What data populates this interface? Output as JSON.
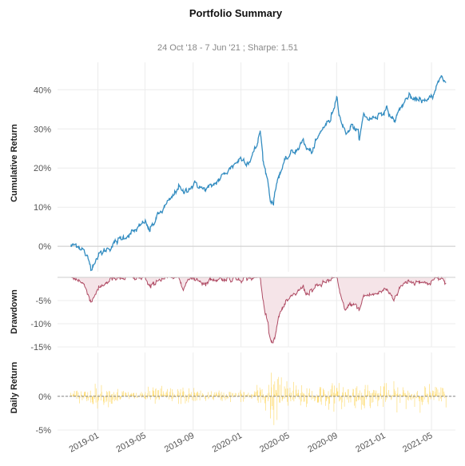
{
  "colors": {
    "cumulative": "#348dc1",
    "drawdown_line": "#af4b64",
    "drawdown_fill": "#f5e4e8",
    "daily": "#fedd78",
    "zero_line": "#cccccc",
    "daily_zero": "#777777"
  },
  "chart_data": [
    {
      "type": "line",
      "title": "Portfolio Summary",
      "subtitle": "24 Oct '18 -  7 Jun '21 ;  Sharpe: 1.51",
      "ylabel": "Cumulative Return",
      "ylim": [
        -0.065,
        0.47
      ],
      "yticks": [
        0,
        0.1,
        0.2,
        0.3,
        0.4
      ],
      "ytick_labels": [
        "0%",
        "10%",
        "20%",
        "30%",
        "40%"
      ],
      "grid": true,
      "x_key_dates": [
        "2018-10-24",
        "2018-11-10",
        "2018-11-25",
        "2018-12-05",
        "2018-12-15",
        "2018-12-24",
        "2019-01-05",
        "2019-01-20",
        "2019-02-10",
        "2019-03-01",
        "2019-03-20",
        "2019-04-15",
        "2019-04-30",
        "2019-05-13",
        "2019-06-01",
        "2019-06-20",
        "2019-07-10",
        "2019-07-26",
        "2019-08-05",
        "2019-08-20",
        "2019-09-10",
        "2019-09-25",
        "2019-10-15",
        "2019-11-01",
        "2019-11-20",
        "2019-12-10",
        "2019-12-31",
        "2020-01-20",
        "2020-02-10",
        "2020-02-19",
        "2020-02-28",
        "2020-03-09",
        "2020-03-16",
        "2020-03-23",
        "2020-04-05",
        "2020-04-20",
        "2020-05-05",
        "2020-05-20",
        "2020-06-08",
        "2020-06-15",
        "2020-06-29",
        "2020-07-15",
        "2020-08-01",
        "2020-08-15",
        "2020-09-02",
        "2020-09-10",
        "2020-09-23",
        "2020-10-12",
        "2020-10-30",
        "2020-11-09",
        "2020-11-25",
        "2020-12-15",
        "2021-01-05",
        "2021-01-26",
        "2021-02-12",
        "2021-03-04",
        "2021-03-18",
        "2021-04-01",
        "2021-04-16",
        "2021-05-07",
        "2021-05-12",
        "2021-05-26",
        "2021-06-07"
      ],
      "x_key_values": [
        0.0,
        0.005,
        -0.01,
        -0.03,
        -0.055,
        -0.035,
        -0.02,
        -0.01,
        0.005,
        0.02,
        0.03,
        0.045,
        0.065,
        0.04,
        0.075,
        0.1,
        0.125,
        0.155,
        0.135,
        0.15,
        0.16,
        0.145,
        0.15,
        0.165,
        0.185,
        0.205,
        0.225,
        0.215,
        0.255,
        0.295,
        0.21,
        0.17,
        0.12,
        0.11,
        0.18,
        0.21,
        0.235,
        0.245,
        0.27,
        0.25,
        0.24,
        0.275,
        0.31,
        0.32,
        0.385,
        0.33,
        0.29,
        0.31,
        0.28,
        0.335,
        0.325,
        0.335,
        0.35,
        0.32,
        0.355,
        0.385,
        0.37,
        0.38,
        0.365,
        0.39,
        0.41,
        0.43,
        0.42
      ]
    },
    {
      "type": "area",
      "ylabel": "Drawdown",
      "ylim": [
        -0.15,
        0.0
      ],
      "yticks": [
        -0.05,
        -0.1,
        -0.15
      ],
      "ytick_labels": [
        "-5%",
        "-10%",
        "-15%"
      ],
      "grid": true,
      "x_key_dates": [
        "2018-10-24",
        "2018-11-10",
        "2018-11-25",
        "2018-12-05",
        "2018-12-15",
        "2018-12-24",
        "2019-01-10",
        "2019-02-01",
        "2019-03-01",
        "2019-04-01",
        "2019-04-30",
        "2019-05-13",
        "2019-06-01",
        "2019-06-20",
        "2019-07-26",
        "2019-08-05",
        "2019-08-20",
        "2019-09-10",
        "2019-10-01",
        "2019-10-20",
        "2020-01-01",
        "2020-02-19",
        "2020-02-28",
        "2020-03-09",
        "2020-03-16",
        "2020-03-23",
        "2020-04-10",
        "2020-05-01",
        "2020-06-08",
        "2020-06-15",
        "2020-07-15",
        "2020-08-15",
        "2020-09-02",
        "2020-09-10",
        "2020-09-23",
        "2020-10-12",
        "2020-10-30",
        "2020-11-09",
        "2020-12-15",
        "2021-01-05",
        "2021-01-26",
        "2021-02-12",
        "2021-03-04",
        "2021-03-18",
        "2021-04-01",
        "2021-04-16",
        "2021-05-07",
        "2021-05-12",
        "2021-06-07"
      ],
      "x_key_values": [
        0.0,
        -0.003,
        -0.015,
        -0.03,
        -0.055,
        -0.035,
        -0.02,
        -0.005,
        -0.003,
        -0.002,
        0.0,
        -0.025,
        -0.005,
        -0.002,
        0.0,
        -0.018,
        -0.006,
        -0.002,
        -0.014,
        -0.004,
        -0.002,
        0.0,
        -0.06,
        -0.095,
        -0.13,
        -0.14,
        -0.075,
        -0.05,
        -0.02,
        -0.035,
        -0.02,
        -0.005,
        0.0,
        -0.04,
        -0.07,
        -0.055,
        -0.07,
        -0.04,
        -0.035,
        -0.025,
        -0.045,
        -0.02,
        -0.005,
        -0.012,
        -0.005,
        -0.015,
        -0.005,
        0.0,
        -0.008
      ]
    },
    {
      "type": "bar",
      "ylabel": "Daily Return",
      "ylim": [
        -0.05,
        0.065
      ],
      "yticks": [
        0,
        -0.05
      ],
      "ytick_labels": [
        "0%",
        "-5%"
      ],
      "grid": true,
      "x_start": "2018-10-24",
      "x_end": "2021-06-07",
      "volatility_key_dates": [
        "2018-10-24",
        "2018-12-01",
        "2018-12-31",
        "2019-04-01",
        "2019-05-15",
        "2019-08-05",
        "2019-10-01",
        "2020-01-25",
        "2020-02-24",
        "2020-03-15",
        "2020-04-15",
        "2020-05-15",
        "2020-06-10",
        "2020-09-05",
        "2020-10-30",
        "2021-01-27",
        "2021-03-05",
        "2021-05-12",
        "2021-06-07"
      ],
      "volatility_key_values": [
        0.006,
        0.012,
        0.014,
        0.007,
        0.011,
        0.012,
        0.007,
        0.008,
        0.018,
        0.04,
        0.025,
        0.016,
        0.019,
        0.016,
        0.018,
        0.015,
        0.015,
        0.014,
        0.012
      ]
    }
  ],
  "xaxis": {
    "ticks": [
      "2019-01-01",
      "2019-05-01",
      "2019-09-01",
      "2020-01-01",
      "2020-05-01",
      "2020-09-01",
      "2021-01-01",
      "2021-05-01"
    ],
    "tick_labels": [
      "2019-01",
      "2019-05",
      "2019-09",
      "2020-01",
      "2020-05",
      "2020-09",
      "2021-01",
      "2021-05"
    ]
  }
}
